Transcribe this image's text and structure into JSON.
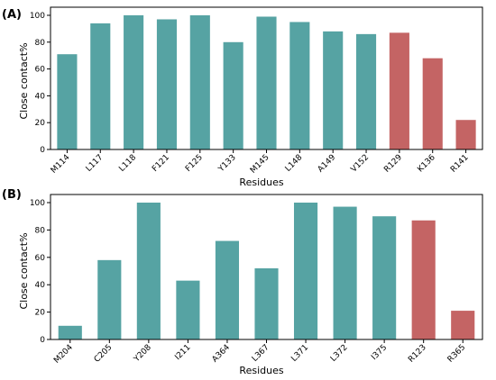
{
  "chart_data": [
    {
      "panel_label": "(A)",
      "type": "bar",
      "xlabel": "",
      "ylabel": "Close contact%",
      "ylim": [
        0,
        100
      ],
      "yticks": [
        0,
        20,
        40,
        60,
        80,
        100
      ],
      "categories": [
        "M114",
        "L117",
        "L118",
        "F121",
        "F125",
        "Y133",
        "M145",
        "L148",
        "A149",
        "V152",
        "R129",
        "K136",
        "R141"
      ],
      "values": [
        71,
        94,
        100,
        97,
        100,
        80,
        99,
        95,
        88,
        86,
        87,
        68,
        22
      ],
      "groups": [
        "teal",
        "teal",
        "teal",
        "teal",
        "teal",
        "teal",
        "teal",
        "teal",
        "teal",
        "teal",
        "red",
        "red",
        "red"
      ]
    },
    {
      "panel_label": "(B)",
      "type": "bar",
      "xlabel": "Residues",
      "ylabel": "Close contact%",
      "ylim": [
        0,
        100
      ],
      "yticks": [
        0,
        20,
        40,
        60,
        80,
        100
      ],
      "categories": [
        "M204",
        "C205",
        "Y208",
        "I211",
        "A364",
        "L367",
        "L371",
        "L372",
        "I375",
        "R123",
        "R365"
      ],
      "values": [
        10,
        58,
        100,
        43,
        72,
        52,
        100,
        97,
        90,
        87,
        21
      ],
      "groups": [
        "teal",
        "teal",
        "teal",
        "teal",
        "teal",
        "teal",
        "teal",
        "teal",
        "teal",
        "red",
        "red"
      ]
    }
  ],
  "panel_a_xlabel": "Residues",
  "colors": {
    "teal": "#56a3a3",
    "red": "#c46464",
    "axis": "#000000"
  }
}
